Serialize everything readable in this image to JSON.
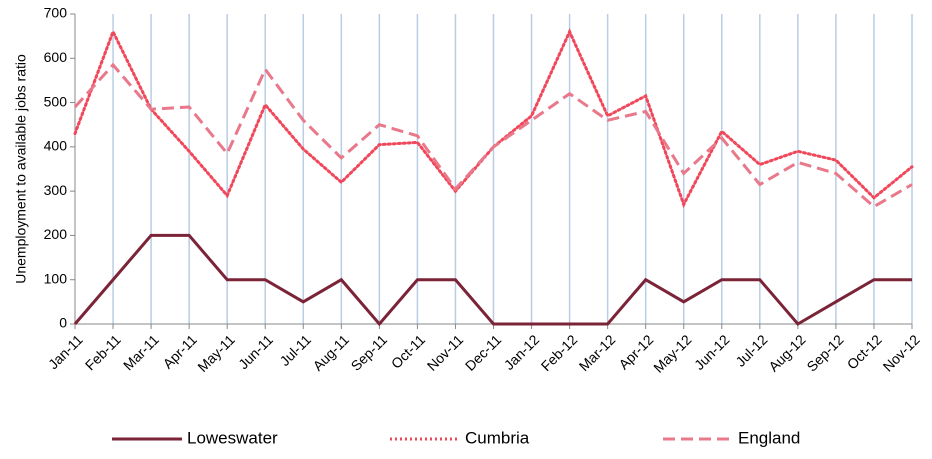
{
  "chart_data": {
    "type": "line",
    "y_label": "Unemployment to available jobs ratio",
    "categories": [
      "Jan-11",
      "Feb-11",
      "Mar-11",
      "Apr-11",
      "May-11",
      "Jun-11",
      "Jul-11",
      "Aug-11",
      "Sep-11",
      "Oct-11",
      "Nov-11",
      "Dec-11",
      "Jan-12",
      "Feb-12",
      "Mar-12",
      "Apr-12",
      "May-12",
      "Jun-12",
      "Jul-12",
      "Aug-12",
      "Sep-12",
      "Oct-12",
      "Nov-12"
    ],
    "series": [
      {
        "name": "Loweswater",
        "color": "#7b2337",
        "dash": "solid",
        "values": [
          0,
          100,
          200,
          200,
          100,
          100,
          50,
          100,
          0,
          100,
          100,
          0,
          0,
          0,
          0,
          100,
          50,
          100,
          100,
          0,
          50,
          100,
          100
        ]
      },
      {
        "name": "Cumbria",
        "color": "#f0475a",
        "dash": "dotted",
        "values": [
          430,
          660,
          485,
          390,
          290,
          495,
          395,
          320,
          405,
          410,
          300,
          400,
          470,
          660,
          470,
          515,
          270,
          435,
          360,
          390,
          370,
          285,
          355
        ]
      },
      {
        "name": "England",
        "color": "#e8788a",
        "dash": "dashed",
        "values": [
          490,
          585,
          485,
          490,
          385,
          575,
          460,
          375,
          450,
          425,
          305,
          400,
          460,
          520,
          460,
          480,
          340,
          420,
          315,
          365,
          340,
          265,
          315
        ]
      }
    ],
    "ylim": [
      0,
      700
    ],
    "yticks": [
      0,
      100,
      200,
      300,
      400,
      500,
      600,
      700
    ],
    "grid": "vertical",
    "legend": "bottom"
  }
}
